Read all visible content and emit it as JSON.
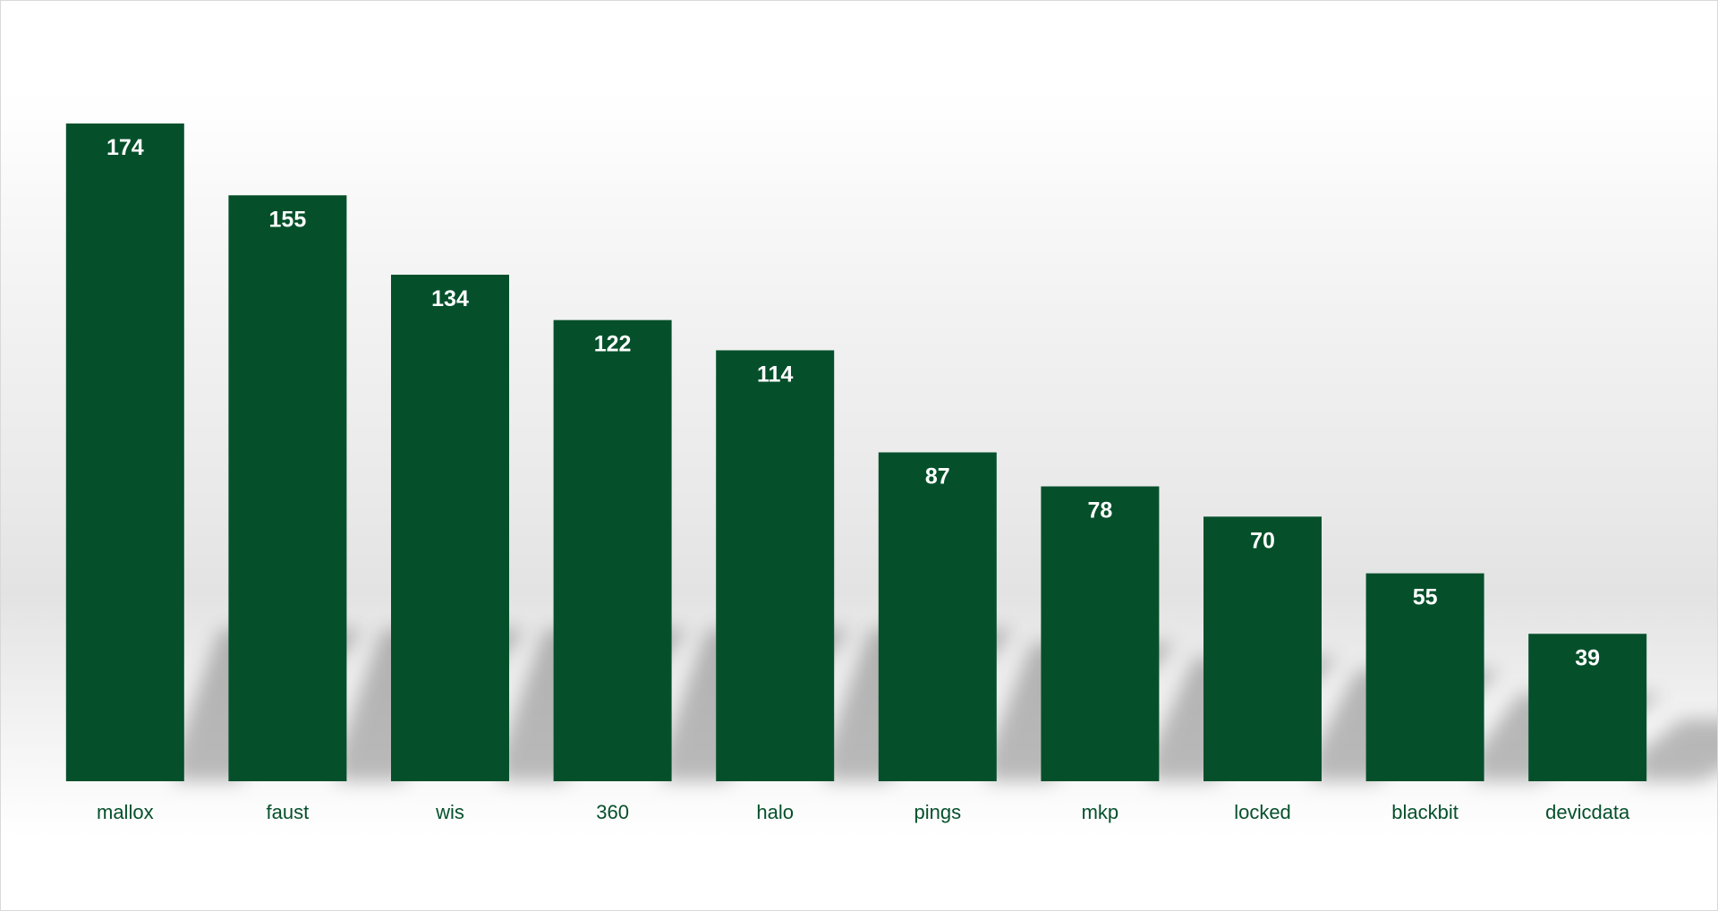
{
  "chart_data": {
    "type": "bar",
    "title": "",
    "xlabel": "",
    "ylabel": "",
    "categories": [
      "mallox",
      "faust",
      "wis",
      "360",
      "halo",
      "pings",
      "mkp",
      "locked",
      "blackbit",
      "devicdata"
    ],
    "values": [
      174,
      155,
      134,
      122,
      114,
      87,
      78,
      70,
      55,
      39
    ],
    "ylim": [
      0,
      174
    ],
    "grid": false,
    "legend": "none",
    "data_labels": true,
    "bar_color": "#05502b",
    "label_color": "#ffffff",
    "tick_label_color": "#05502b"
  }
}
